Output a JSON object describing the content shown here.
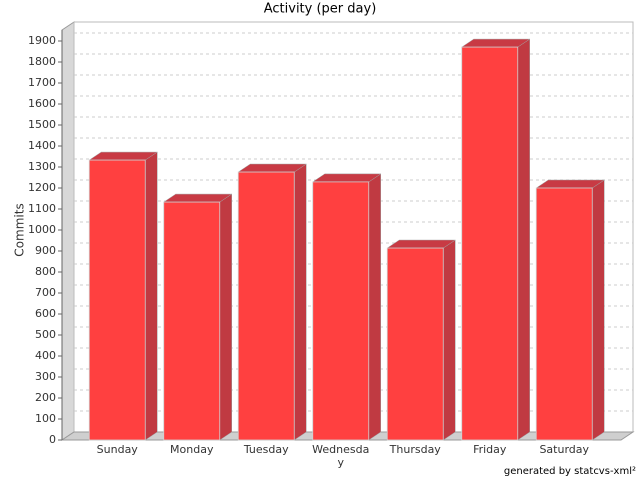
{
  "chart_data": {
    "type": "bar3d",
    "title": "Activity (per day)",
    "y_label": "Commits",
    "footnote": "generated by statcvs-xml²",
    "categories": [
      "Sunday",
      "Monday",
      "Tuesday",
      "Wednesday",
      "Thursday",
      "Friday",
      "Saturday"
    ],
    "values": [
      1333,
      1133,
      1276,
      1229,
      914,
      1871,
      1200
    ],
    "color": "#ff4040",
    "ylim": [
      0,
      1950
    ],
    "yticks": [
      0,
      100,
      200,
      300,
      400,
      500,
      600,
      700,
      800,
      900,
      1000,
      1100,
      1200,
      1300,
      1400,
      1500,
      1600,
      1700,
      1800,
      1900
    ],
    "grid": true
  }
}
